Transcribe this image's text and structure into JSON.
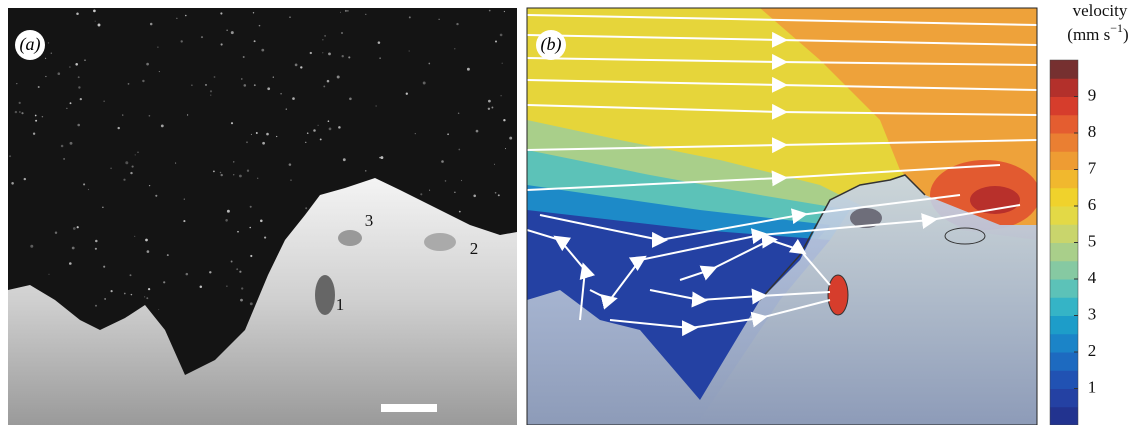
{
  "panels": [
    {
      "label": "(a)",
      "annotations": [
        "1",
        "2",
        "3"
      ]
    },
    {
      "label": "(b)"
    }
  ],
  "colorbar": {
    "title": "velocity",
    "unit": [
      "(mm s",
      "−1",
      ")"
    ],
    "range": [
      0,
      10
    ],
    "ticks": [
      1,
      2,
      3,
      4,
      5,
      6,
      7,
      8,
      9
    ],
    "colors": [
      "#22338f",
      "#2441a3",
      "#2152b3",
      "#1d6ac0",
      "#1b84c8",
      "#1d9dc9",
      "#35b4c6",
      "#5cc2b8",
      "#86c9a2",
      "#a9cf8a",
      "#c9d56c",
      "#e3d946",
      "#f0d22c",
      "#f1b82e",
      "#ee9c33",
      "#ea7f32",
      "#e45d30",
      "#d63d2c",
      "#b3302b",
      "#763030"
    ]
  }
}
